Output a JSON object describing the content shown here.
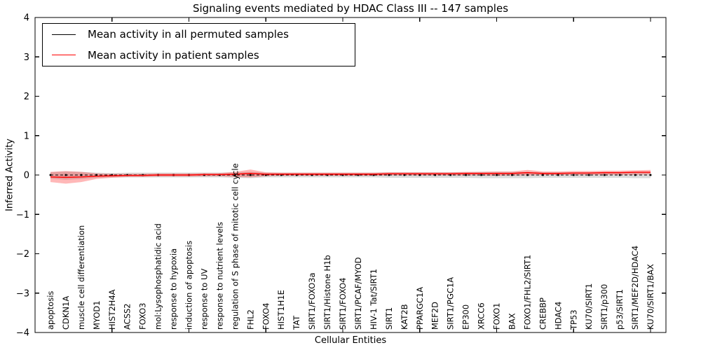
{
  "chart_data": {
    "type": "line",
    "title": "Signaling events mediated by HDAC Class III -- 147 samples",
    "xlabel": "Cellular Entities",
    "ylabel": "Inferred Activity",
    "ylim": [
      -4,
      4
    ],
    "yticks": [
      -4,
      -3,
      -2,
      -1,
      0,
      1,
      2,
      3,
      4
    ],
    "x_axis_units": 41,
    "major_x_ticks": [
      5,
      10,
      15,
      20,
      25,
      30,
      35,
      40
    ],
    "grid": false,
    "legend_position": "upper left",
    "categories": [
      "apoptosis",
      "CDKN1A",
      "muscle cell differentiation",
      "MYOD1",
      "HIST2H4A",
      "ACSS2",
      "FOXO3",
      "mol:Lysophosphatidic acid",
      "response to hypoxia",
      "induction of apoptosis",
      "response to UV",
      "response to nutrient levels",
      "regulation of S phase of mitotic cell cycle",
      "FHL2",
      "FOXO4",
      "HIST1H1E",
      "TAT",
      "SIRT1/FOXO3a",
      "SIRT1/Histone H1b",
      "SIRT1/FOXO4",
      "SIRT1/PCAF/MYOD",
      "HIV-1 Tat/SIRT1",
      "SIRT1",
      "KAT2B",
      "PPARGC1A",
      "MEF2D",
      "SIRT1/PGC1A",
      "EP300",
      "XRCC6",
      "FOXO1",
      "BAX",
      "FOXO1/FHL2/SIRT1",
      "CREBBP",
      "HDAC4",
      "TP53",
      "KU70/SIRT1",
      "SIRT1/p300",
      "p53/SIRT1",
      "SIRT1/MEF2D/HDAC4",
      "KU70/SIRT1/BAX"
    ],
    "series": [
      {
        "name": "Mean activity in all permuted samples",
        "color": "#000000",
        "style": "dashed-with-markers",
        "values": [
          0,
          0,
          0,
          0,
          0,
          0,
          0,
          0,
          0,
          0,
          0,
          0,
          0,
          0,
          0,
          0,
          0,
          0,
          0,
          0,
          0,
          0,
          0,
          0,
          0,
          0,
          0,
          0,
          0,
          0,
          0,
          0,
          0,
          0,
          0,
          0,
          0,
          0,
          0,
          0
        ]
      },
      {
        "name": "Mean activity in patient samples",
        "color": "#ff0000",
        "style": "solid",
        "values": [
          -0.05,
          -0.06,
          -0.05,
          -0.03,
          -0.02,
          -0.01,
          -0.01,
          0.0,
          0.0,
          0.0,
          0.01,
          0.01,
          0.02,
          0.04,
          0.02,
          0.02,
          0.02,
          0.02,
          0.02,
          0.02,
          0.02,
          0.02,
          0.03,
          0.03,
          0.03,
          0.03,
          0.03,
          0.04,
          0.04,
          0.04,
          0.04,
          0.06,
          0.04,
          0.04,
          0.05,
          0.05,
          0.06,
          0.06,
          0.07,
          0.07
        ]
      }
    ],
    "bands": [
      {
        "name": "permuted-samples-range",
        "color": "#999999",
        "opacity": 0.35,
        "upper": [
          0.07,
          0.09,
          0.08,
          0.06,
          0.05,
          0.06,
          0.06,
          0.06,
          0.06,
          0.06,
          0.06,
          0.06,
          0.07,
          0.08,
          0.06,
          0.06,
          0.06,
          0.06,
          0.06,
          0.06,
          0.06,
          0.06,
          0.07,
          0.07,
          0.07,
          0.07,
          0.07,
          0.07,
          0.08,
          0.08,
          0.08,
          0.08,
          0.07,
          0.07,
          0.07,
          0.07,
          0.07,
          0.07,
          0.08,
          0.08
        ],
        "lower": [
          -0.09,
          -0.12,
          -0.1,
          -0.07,
          -0.06,
          -0.06,
          -0.06,
          -0.06,
          -0.06,
          -0.06,
          -0.06,
          -0.06,
          -0.07,
          -0.08,
          -0.06,
          -0.06,
          -0.06,
          -0.06,
          -0.06,
          -0.06,
          -0.06,
          -0.06,
          -0.07,
          -0.07,
          -0.07,
          -0.07,
          -0.07,
          -0.07,
          -0.08,
          -0.08,
          -0.08,
          -0.08,
          -0.07,
          -0.07,
          -0.07,
          -0.07,
          -0.07,
          -0.07,
          -0.08,
          -0.08
        ]
      },
      {
        "name": "patient-samples-range",
        "color": "#ff0000",
        "opacity": 0.28,
        "upper": [
          0.08,
          0.1,
          0.08,
          0.04,
          0.03,
          0.03,
          0.03,
          0.04,
          0.04,
          0.04,
          0.05,
          0.05,
          0.08,
          0.14,
          0.07,
          0.06,
          0.06,
          0.06,
          0.06,
          0.06,
          0.06,
          0.06,
          0.07,
          0.07,
          0.07,
          0.07,
          0.07,
          0.08,
          0.08,
          0.09,
          0.09,
          0.13,
          0.09,
          0.09,
          0.1,
          0.1,
          0.11,
          0.11,
          0.12,
          0.13
        ],
        "lower": [
          -0.18,
          -0.22,
          -0.18,
          -0.1,
          -0.07,
          -0.05,
          -0.05,
          -0.04,
          -0.04,
          -0.04,
          -0.03,
          -0.03,
          -0.05,
          -0.06,
          -0.03,
          -0.02,
          -0.02,
          -0.02,
          -0.02,
          -0.02,
          -0.02,
          -0.02,
          -0.01,
          -0.01,
          -0.01,
          -0.01,
          -0.01,
          -0.01,
          -0.01,
          -0.02,
          -0.01,
          -0.01,
          0.0,
          0.0,
          0.0,
          0.0,
          0.01,
          0.01,
          0.01,
          0.02
        ]
      }
    ]
  }
}
